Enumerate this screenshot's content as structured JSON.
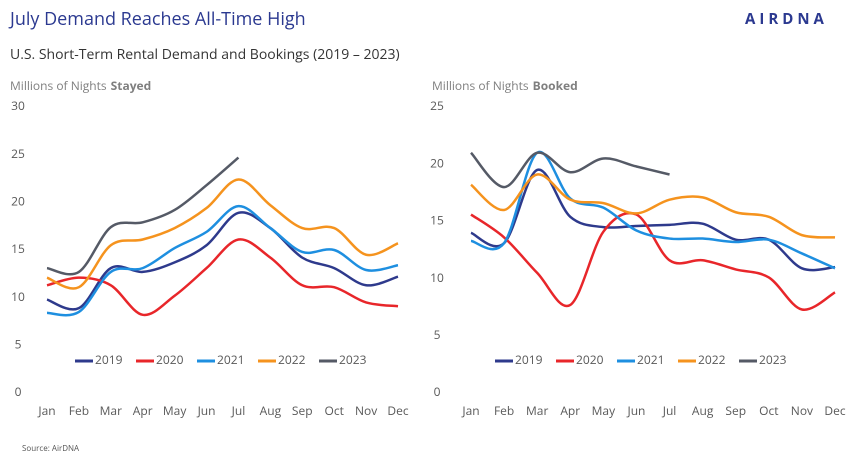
{
  "header": {
    "title": "July Demand Reaches All-Time High",
    "subtitle": "U.S. Short-Term Rental Demand and Bookings (2019 – 2023)",
    "logo": "AIRDNA"
  },
  "source": "Source: AirDNA",
  "chart_data": [
    {
      "type": "line",
      "y_label": "Millions of Nights",
      "y_label_emphasis": "Stayed",
      "categories": [
        "Jan",
        "Feb",
        "Mar",
        "Apr",
        "May",
        "Jun",
        "Jul",
        "Aug",
        "Sep",
        "Oct",
        "Nov",
        "Dec"
      ],
      "ylim": [
        0,
        30
      ],
      "yticks": [
        0,
        5,
        10,
        15,
        20,
        25,
        30
      ],
      "grid": false,
      "legend": "bottom",
      "series": [
        {
          "name": "2019",
          "color": "#2e3a8c",
          "values": [
            9.8,
            8.9,
            13.1,
            12.7,
            13.7,
            15.5,
            18.9,
            17.3,
            14.2,
            13.1,
            11.3,
            12.2
          ]
        },
        {
          "name": "2020",
          "color": "#e8262a",
          "values": [
            11.3,
            12.1,
            11.3,
            8.2,
            10.2,
            13.1,
            16.1,
            14.2,
            11.3,
            11.1,
            9.5,
            9.1
          ]
        },
        {
          "name": "2021",
          "color": "#1e8fe0",
          "values": [
            8.4,
            8.5,
            12.7,
            13.1,
            15.2,
            16.9,
            19.6,
            17.3,
            14.8,
            15.0,
            12.9,
            13.4
          ]
        },
        {
          "name": "2022",
          "color": "#f5931e",
          "values": [
            12.1,
            11.1,
            15.5,
            16.1,
            17.3,
            19.4,
            22.4,
            19.7,
            17.3,
            17.3,
            14.5,
            15.7
          ]
        },
        {
          "name": "2023",
          "color": "#555a66",
          "values": [
            13.1,
            12.7,
            17.4,
            17.9,
            19.2,
            21.8,
            24.7,
            null,
            null,
            null,
            null,
            null
          ]
        }
      ]
    },
    {
      "type": "line",
      "y_label": "Millions of Nights",
      "y_label_emphasis": "Booked",
      "categories": [
        "Jan",
        "Feb",
        "Mar",
        "Apr",
        "May",
        "Jun",
        "Jul",
        "Aug",
        "Sep",
        "Oct",
        "Nov",
        "Dec"
      ],
      "ylim": [
        0,
        25
      ],
      "yticks": [
        0,
        5,
        10,
        15,
        20,
        25
      ],
      "grid": false,
      "legend": "bottom",
      "series": [
        {
          "name": "2019",
          "color": "#2e3a8c",
          "values": [
            14.0,
            13.1,
            19.5,
            15.4,
            14.5,
            14.6,
            14.7,
            14.8,
            13.4,
            13.4,
            10.9,
            11.0
          ]
        },
        {
          "name": "2020",
          "color": "#e8262a",
          "values": [
            15.6,
            13.6,
            10.5,
            7.7,
            14.1,
            15.6,
            11.6,
            11.6,
            10.8,
            10.1,
            7.3,
            8.8
          ]
        },
        {
          "name": "2021",
          "color": "#1e8fe0",
          "values": [
            13.3,
            13.1,
            21.0,
            17.0,
            16.2,
            14.2,
            13.5,
            13.5,
            13.2,
            13.4,
            12.2,
            10.9
          ]
        },
        {
          "name": "2022",
          "color": "#f5931e",
          "values": [
            18.2,
            16.0,
            19.1,
            16.9,
            16.6,
            15.7,
            16.9,
            17.1,
            15.8,
            15.4,
            13.8,
            13.6
          ]
        },
        {
          "name": "2023",
          "color": "#555a66",
          "values": [
            21.0,
            18.0,
            21.0,
            19.3,
            20.5,
            19.8,
            19.1,
            null,
            null,
            null,
            null,
            null
          ]
        }
      ]
    }
  ]
}
